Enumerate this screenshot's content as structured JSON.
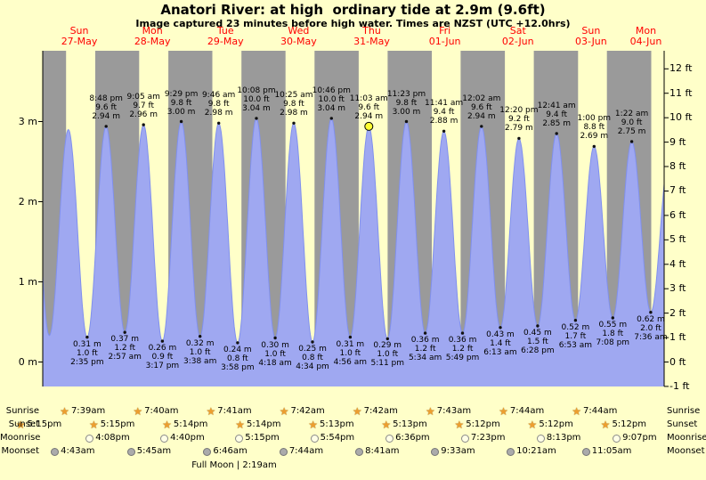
{
  "title": "Anatori River: at high  ordinary tide at 2.9m (9.6ft)",
  "subtitle": "Image captured 23 minutes before high water. Times are NZST (UTC +12.0hrs)",
  "colors": {
    "background": "#FFFFC9",
    "day_band": "#FFFFC9",
    "night_band": "#9A9A9A",
    "tide_fill": "#9FA8F1",
    "tide_stroke": "#8090EE",
    "day_label": "#FF0000",
    "axis": "#000000",
    "current_marker": "#FFFF33",
    "dot": "#111111",
    "star": "#ED9E2F"
  },
  "icons": {
    "sun_star": "★"
  },
  "day_labels": [
    {
      "dow": "Sun",
      "date": "27-May"
    },
    {
      "dow": "Mon",
      "date": "28-May"
    },
    {
      "dow": "Tue",
      "date": "29-May"
    },
    {
      "dow": "Wed",
      "date": "30-May"
    },
    {
      "dow": "Thu",
      "date": "31-May"
    },
    {
      "dow": "Fri",
      "date": "01-Jun"
    },
    {
      "dow": "Sat",
      "date": "02-Jun"
    },
    {
      "dow": "Sun",
      "date": "03-Jun"
    },
    {
      "dow": "Mon",
      "date": "04-Jun"
    }
  ],
  "axes": {
    "left_ticks": [
      "0 m",
      "1 m",
      "2 m",
      "3 m"
    ],
    "right_ticks": [
      "-1 ft",
      "0 ft",
      "1 ft",
      "2 ft",
      "3 ft",
      "4 ft",
      "5 ft",
      "6 ft",
      "7 ft",
      "8 ft",
      "9 ft",
      "10 ft",
      "11 ft",
      "12 ft"
    ]
  },
  "chart_data": {
    "type": "area",
    "description": "Tide height curve, 27-May to 04-Jun, meters (left axis) and feet (right axis)",
    "x_start": "27-May 00:00",
    "x_end": "04-Jun ~12:00",
    "ylim_m": [
      -0.305,
      3.81
    ],
    "band_last_sunrise": {
      "day": 8,
      "time": "7:45am"
    },
    "extremes": [
      {
        "kind": "high",
        "day": -1,
        "time": "8:10 pm",
        "value_m": 2.9,
        "labeled": false
      },
      {
        "kind": "low",
        "day": 0,
        "time": "2:10 am",
        "value_m": 0.33,
        "labeled": false
      },
      {
        "kind": "high",
        "day": 0,
        "time": "8:25 am",
        "value_m": 2.9,
        "labeled": false
      },
      {
        "kind": "low",
        "day": 0,
        "time": "2:35 pm",
        "m": "0.31 m",
        "ft": "1.0 ft",
        "value_m": 0.31
      },
      {
        "kind": "high",
        "day": 0,
        "time": "8:48 pm",
        "ft": "9.6 ft",
        "m": "2.94 m",
        "value_m": 2.94
      },
      {
        "kind": "low",
        "day": 1,
        "time": "2:57 am",
        "m": "0.37 m",
        "ft": "1.2 ft",
        "value_m": 0.37
      },
      {
        "kind": "high",
        "day": 1,
        "time": "9:05 am",
        "ft": "9.7 ft",
        "m": "2.96 m",
        "value_m": 2.96
      },
      {
        "kind": "low",
        "day": 1,
        "time": "3:17 pm",
        "m": "0.26 m",
        "ft": "0.9 ft",
        "value_m": 0.26
      },
      {
        "kind": "high",
        "day": 1,
        "time": "9:29 pm",
        "ft": "9.8 ft",
        "m": "3.00 m",
        "value_m": 3.0
      },
      {
        "kind": "low",
        "day": 2,
        "time": "3:38 am",
        "m": "0.32 m",
        "ft": "1.0 ft",
        "value_m": 0.32
      },
      {
        "kind": "high",
        "day": 2,
        "time": "9:46 am",
        "ft": "9.8 ft",
        "m": "2.98 m",
        "value_m": 2.98
      },
      {
        "kind": "low",
        "day": 2,
        "time": "3:58 pm",
        "m": "0.24 m",
        "ft": "0.8 ft",
        "value_m": 0.24
      },
      {
        "kind": "high",
        "day": 2,
        "time": "10:08 pm",
        "ft": "10.0 ft",
        "m": "3.04 m",
        "value_m": 3.04
      },
      {
        "kind": "low",
        "day": 3,
        "time": "4:18 am",
        "m": "0.30 m",
        "ft": "1.0 ft",
        "value_m": 0.3
      },
      {
        "kind": "high",
        "day": 3,
        "time": "10:25 am",
        "ft": "9.8 ft",
        "m": "2.98 m",
        "value_m": 2.98
      },
      {
        "kind": "low",
        "day": 3,
        "time": "4:34 pm",
        "m": "0.25 m",
        "ft": "0.8 ft",
        "value_m": 0.25
      },
      {
        "kind": "high",
        "day": 3,
        "time": "10:46 pm",
        "ft": "10.0 ft",
        "m": "3.04 m",
        "value_m": 3.04
      },
      {
        "kind": "low",
        "day": 4,
        "time": "4:56 am",
        "m": "0.31 m",
        "ft": "1.0 ft",
        "value_m": 0.31
      },
      {
        "kind": "high",
        "day": 4,
        "time": "11:03 am",
        "ft": "9.6 ft",
        "m": "2.94 m",
        "value_m": 2.94,
        "current": true
      },
      {
        "kind": "low",
        "day": 4,
        "time": "5:11 pm",
        "m": "0.29 m",
        "ft": "1.0 ft",
        "value_m": 0.29
      },
      {
        "kind": "high",
        "day": 4,
        "time": "11:23 pm",
        "ft": "9.8 ft",
        "m": "3.00 m",
        "value_m": 3.0
      },
      {
        "kind": "low",
        "day": 5,
        "time": "5:34 am",
        "m": "0.36 m",
        "ft": "1.2 ft",
        "value_m": 0.36
      },
      {
        "kind": "high",
        "day": 5,
        "time": "11:41 am",
        "ft": "9.4 ft",
        "m": "2.88 m",
        "value_m": 2.88
      },
      {
        "kind": "low",
        "day": 5,
        "time": "5:49 pm",
        "m": "0.36 m",
        "ft": "1.2 ft",
        "value_m": 0.36
      },
      {
        "kind": "high",
        "day": 6,
        "time": "12:02 am",
        "ft": "9.6 ft",
        "m": "2.94 m",
        "value_m": 2.94
      },
      {
        "kind": "low",
        "day": 6,
        "time": "6:13 am",
        "m": "0.43 m",
        "ft": "1.4 ft",
        "value_m": 0.43
      },
      {
        "kind": "high",
        "day": 6,
        "time": "12:20 pm",
        "ft": "9.2 ft",
        "m": "2.79 m",
        "value_m": 2.79
      },
      {
        "kind": "low",
        "day": 6,
        "time": "6:28 pm",
        "m": "0.45 m",
        "ft": "1.5 ft",
        "value_m": 0.45
      },
      {
        "kind": "high",
        "day": 7,
        "time": "12:41 am",
        "ft": "9.4 ft",
        "m": "2.85 m",
        "value_m": 2.85
      },
      {
        "kind": "low",
        "day": 7,
        "time": "6:53 am",
        "m": "0.52 m",
        "ft": "1.7 ft",
        "value_m": 0.52
      },
      {
        "kind": "high",
        "day": 7,
        "time": "1:00 pm",
        "ft": "8.8 ft",
        "m": "2.69 m",
        "value_m": 2.69
      },
      {
        "kind": "low",
        "day": 7,
        "time": "7:08 pm",
        "m": "0.55 m",
        "ft": "1.8 ft",
        "value_m": 0.55
      },
      {
        "kind": "high",
        "day": 8,
        "time": "1:22 am",
        "ft": "9.0 ft",
        "m": "2.75 m",
        "value_m": 2.75
      },
      {
        "kind": "low",
        "day": 8,
        "time": "7:36 am",
        "m": "0.62 m",
        "ft": "2.0 ft",
        "value_m": 0.62
      },
      {
        "kind": "high",
        "day": 8,
        "time": "1:50 pm",
        "value_m": 2.62,
        "labeled": false
      }
    ]
  },
  "astro": {
    "row_labels": {
      "sunrise": "Sunrise",
      "sunset": "Sunset",
      "moonrise": "Moonrise",
      "moonset": "Moonset"
    },
    "sunrise": [
      {
        "day": 0,
        "time": "7:39am"
      },
      {
        "day": 1,
        "time": "7:40am"
      },
      {
        "day": 2,
        "time": "7:41am"
      },
      {
        "day": 3,
        "time": "7:42am"
      },
      {
        "day": 4,
        "time": "7:42am"
      },
      {
        "day": 5,
        "time": "7:43am"
      },
      {
        "day": 6,
        "time": "7:44am"
      },
      {
        "day": 7,
        "time": "7:44am"
      }
    ],
    "sunset": [
      {
        "day": -1,
        "time": "5:15pm"
      },
      {
        "day": 0,
        "time": "5:15pm"
      },
      {
        "day": 1,
        "time": "5:14pm"
      },
      {
        "day": 2,
        "time": "5:14pm"
      },
      {
        "day": 3,
        "time": "5:13pm"
      },
      {
        "day": 4,
        "time": "5:13pm"
      },
      {
        "day": 5,
        "time": "5:12pm"
      },
      {
        "day": 6,
        "time": "5:12pm"
      },
      {
        "day": 7,
        "time": "5:12pm"
      }
    ],
    "moonrise": [
      {
        "day": 0,
        "time": "4:08pm"
      },
      {
        "day": 1,
        "time": "4:40pm"
      },
      {
        "day": 2,
        "time": "5:15pm"
      },
      {
        "day": 3,
        "time": "5:54pm"
      },
      {
        "day": 4,
        "time": "6:36pm"
      },
      {
        "day": 5,
        "time": "7:23pm"
      },
      {
        "day": 6,
        "time": "8:13pm"
      },
      {
        "day": 7,
        "time": "9:07pm"
      }
    ],
    "moonset": [
      {
        "day": 0,
        "time": "4:43am"
      },
      {
        "day": 1,
        "time": "5:45am"
      },
      {
        "day": 2,
        "time": "6:46am"
      },
      {
        "day": 3,
        "time": "7:44am"
      },
      {
        "day": 4,
        "time": "8:41am"
      },
      {
        "day": 5,
        "time": "9:33am"
      },
      {
        "day": 6,
        "time": "10:21am"
      },
      {
        "day": 7,
        "time": "11:05am"
      }
    ],
    "moon_phase": "Full Moon | 2:19am"
  }
}
